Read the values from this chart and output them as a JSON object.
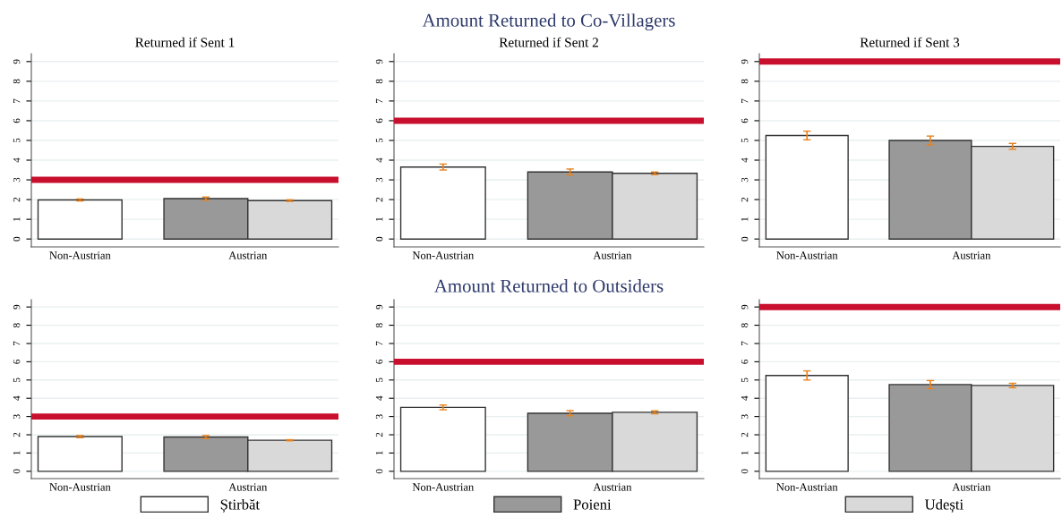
{
  "chart_data": [
    {
      "type": "bar",
      "subtitle": "Returned if Sent 1",
      "categories": [
        "Non-Austrian",
        "Austrian"
      ],
      "ylim": [
        -0.4,
        9.4
      ],
      "yticks": [
        0,
        1,
        2,
        3,
        4,
        5,
        6,
        7,
        8,
        9
      ],
      "grid": "y",
      "legend": "bottom",
      "series": [
        {
          "name": "Știrbăt",
          "color": "#ffffff",
          "values": [
            1.98,
            null
          ],
          "errors": [
            0.05,
            null
          ]
        },
        {
          "name": "Poieni",
          "color": "#999999",
          "values": [
            null,
            2.05
          ],
          "errors": [
            null,
            0.08
          ]
        },
        {
          "name": "Udești",
          "color": "#d9d9d9",
          "values": [
            null,
            1.95
          ],
          "errors": [
            null,
            0.04
          ]
        }
      ],
      "ref_lines": [
        {
          "axis": "y",
          "value": 3,
          "color": "#c8102e"
        }
      ]
    },
    {
      "type": "bar",
      "title": "Amount Returned to Co-Villagers",
      "subtitle": "Returned if Sent 2",
      "categories": [
        "Non-Austrian",
        "Austrian"
      ],
      "ylim": [
        -0.4,
        9.4
      ],
      "yticks": [
        0,
        1,
        2,
        3,
        4,
        5,
        6,
        7,
        8,
        9
      ],
      "grid": "y",
      "series": [
        {
          "color": "#ffffff",
          "values": [
            3.65,
            null
          ],
          "errors": [
            0.15,
            null
          ]
        },
        {
          "color": "#999999",
          "values": [
            null,
            3.4
          ],
          "errors": [
            null,
            0.15
          ]
        },
        {
          "color": "#d9d9d9",
          "values": [
            null,
            3.33
          ],
          "errors": [
            null,
            0.07
          ]
        }
      ],
      "ref_lines": [
        {
          "axis": "y",
          "value": 6,
          "color": "#c8102e"
        }
      ]
    },
    {
      "type": "bar",
      "subtitle": "Returned if Sent 3",
      "categories": [
        "Non-Austrian",
        "Austrian"
      ],
      "ylim": [
        -0.4,
        9.4
      ],
      "yticks": [
        0,
        1,
        2,
        3,
        4,
        5,
        6,
        7,
        8,
        9
      ],
      "grid": "y",
      "series": [
        {
          "color": "#ffffff",
          "values": [
            5.25,
            null
          ],
          "errors": [
            0.22,
            null
          ]
        },
        {
          "color": "#999999",
          "values": [
            null,
            5.0
          ],
          "errors": [
            null,
            0.22
          ]
        },
        {
          "color": "#d9d9d9",
          "values": [
            null,
            4.7
          ],
          "errors": [
            null,
            0.15
          ]
        }
      ],
      "ref_lines": [
        {
          "axis": "y",
          "value": 9,
          "color": "#c8102e"
        }
      ]
    },
    {
      "type": "bar",
      "categories": [
        "Non-Austrian",
        "Austrian"
      ],
      "ylim": [
        -0.4,
        9.4
      ],
      "yticks": [
        0,
        1,
        2,
        3,
        4,
        5,
        6,
        7,
        8,
        9
      ],
      "grid": "y",
      "series": [
        {
          "color": "#ffffff",
          "values": [
            1.9,
            null
          ],
          "errors": [
            0.06,
            null
          ]
        },
        {
          "color": "#999999",
          "values": [
            null,
            1.88
          ],
          "errors": [
            null,
            0.08
          ]
        },
        {
          "color": "#d9d9d9",
          "values": [
            null,
            1.7
          ],
          "errors": [
            null,
            0.03
          ]
        }
      ],
      "ref_lines": [
        {
          "axis": "y",
          "value": 3,
          "color": "#c8102e"
        }
      ]
    },
    {
      "type": "bar",
      "title": "Amount Returned to Outsiders",
      "categories": [
        "Non-Austrian",
        "Austrian"
      ],
      "ylim": [
        -0.4,
        9.4
      ],
      "yticks": [
        0,
        1,
        2,
        3,
        4,
        5,
        6,
        7,
        8,
        9
      ],
      "grid": "y",
      "series": [
        {
          "color": "#ffffff",
          "values": [
            3.5,
            null
          ],
          "errors": [
            0.13,
            null
          ]
        },
        {
          "color": "#999999",
          "values": [
            null,
            3.18
          ],
          "errors": [
            null,
            0.14
          ]
        },
        {
          "color": "#d9d9d9",
          "values": [
            null,
            3.23
          ],
          "errors": [
            null,
            0.08
          ]
        }
      ],
      "ref_lines": [
        {
          "axis": "y",
          "value": 6,
          "color": "#c8102e"
        }
      ]
    },
    {
      "type": "bar",
      "categories": [
        "Non-Austrian",
        "Austrian"
      ],
      "ylim": [
        -0.4,
        9.4
      ],
      "yticks": [
        0,
        1,
        2,
        3,
        4,
        5,
        6,
        7,
        8,
        9
      ],
      "grid": "y",
      "series": [
        {
          "color": "#ffffff",
          "values": [
            5.25,
            null
          ],
          "errors": [
            0.25,
            null
          ]
        },
        {
          "color": "#999999",
          "values": [
            null,
            4.75
          ],
          "errors": [
            null,
            0.22
          ]
        },
        {
          "color": "#d9d9d9",
          "values": [
            null,
            4.7
          ],
          "errors": [
            null,
            0.12
          ]
        }
      ],
      "ref_lines": [
        {
          "axis": "y",
          "value": 9,
          "color": "#c8102e"
        }
      ]
    }
  ]
}
